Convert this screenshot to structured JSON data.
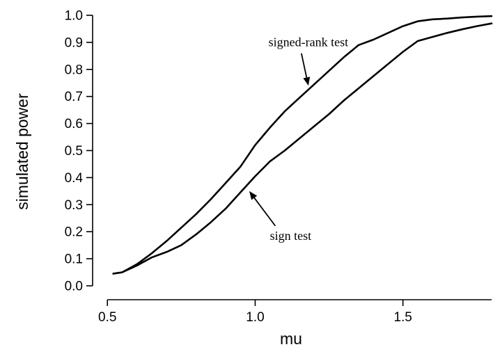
{
  "chart_data": {
    "type": "line",
    "xlabel": "mu",
    "ylabel": "simulated power",
    "xlim": [
      0.45,
      1.8
    ],
    "ylim": [
      0.0,
      1.0
    ],
    "xticks": [
      0.5,
      1.0,
      1.5
    ],
    "xtick_labels": [
      "0.5",
      "1.0",
      "1.5"
    ],
    "yticks": [
      0.0,
      0.1,
      0.2,
      0.3,
      0.4,
      0.5,
      0.6,
      0.7,
      0.8,
      0.9,
      1.0
    ],
    "ytick_labels": [
      "0.0",
      "0.1",
      "0.2",
      "0.3",
      "0.4",
      "0.5",
      "0.6",
      "0.7",
      "0.8",
      "0.9",
      "1.0"
    ],
    "series": [
      {
        "x": [
          0.52,
          0.55,
          0.6,
          0.65,
          0.7,
          0.75,
          0.8,
          0.85,
          0.9,
          0.95,
          1.0,
          1.05,
          1.1,
          1.15,
          1.2,
          1.25,
          1.3,
          1.35,
          1.4,
          1.45,
          1.5,
          1.55,
          1.6,
          1.65,
          1.7,
          1.75,
          1.8
        ],
        "y": [
          0.045,
          0.05,
          0.08,
          0.12,
          0.165,
          0.215,
          0.265,
          0.32,
          0.38,
          0.44,
          0.52,
          0.585,
          0.645,
          0.695,
          0.745,
          0.795,
          0.845,
          0.89,
          0.91,
          0.935,
          0.96,
          0.978,
          0.985,
          0.988,
          0.992,
          0.995,
          0.997
        ]
      },
      {
        "x": [
          0.52,
          0.55,
          0.6,
          0.65,
          0.7,
          0.75,
          0.8,
          0.85,
          0.9,
          0.95,
          1.0,
          1.05,
          1.1,
          1.15,
          1.2,
          1.25,
          1.3,
          1.35,
          1.4,
          1.45,
          1.5,
          1.55,
          1.6,
          1.65,
          1.7,
          1.75,
          1.8
        ],
        "y": [
          0.045,
          0.05,
          0.075,
          0.105,
          0.125,
          0.15,
          0.19,
          0.235,
          0.285,
          0.345,
          0.405,
          0.46,
          0.5,
          0.545,
          0.59,
          0.635,
          0.685,
          0.73,
          0.775,
          0.82,
          0.865,
          0.905,
          0.92,
          0.935,
          0.948,
          0.96,
          0.97
        ]
      }
    ],
    "annotations": [
      {
        "text": "signed-rank test",
        "x": 1.18,
        "y": 0.885,
        "arrow_to": [
          1.18,
          0.74
        ]
      },
      {
        "text": "sign test",
        "x": 1.12,
        "y": 0.17,
        "arrow_to": [
          0.98,
          0.35
        ]
      }
    ]
  }
}
